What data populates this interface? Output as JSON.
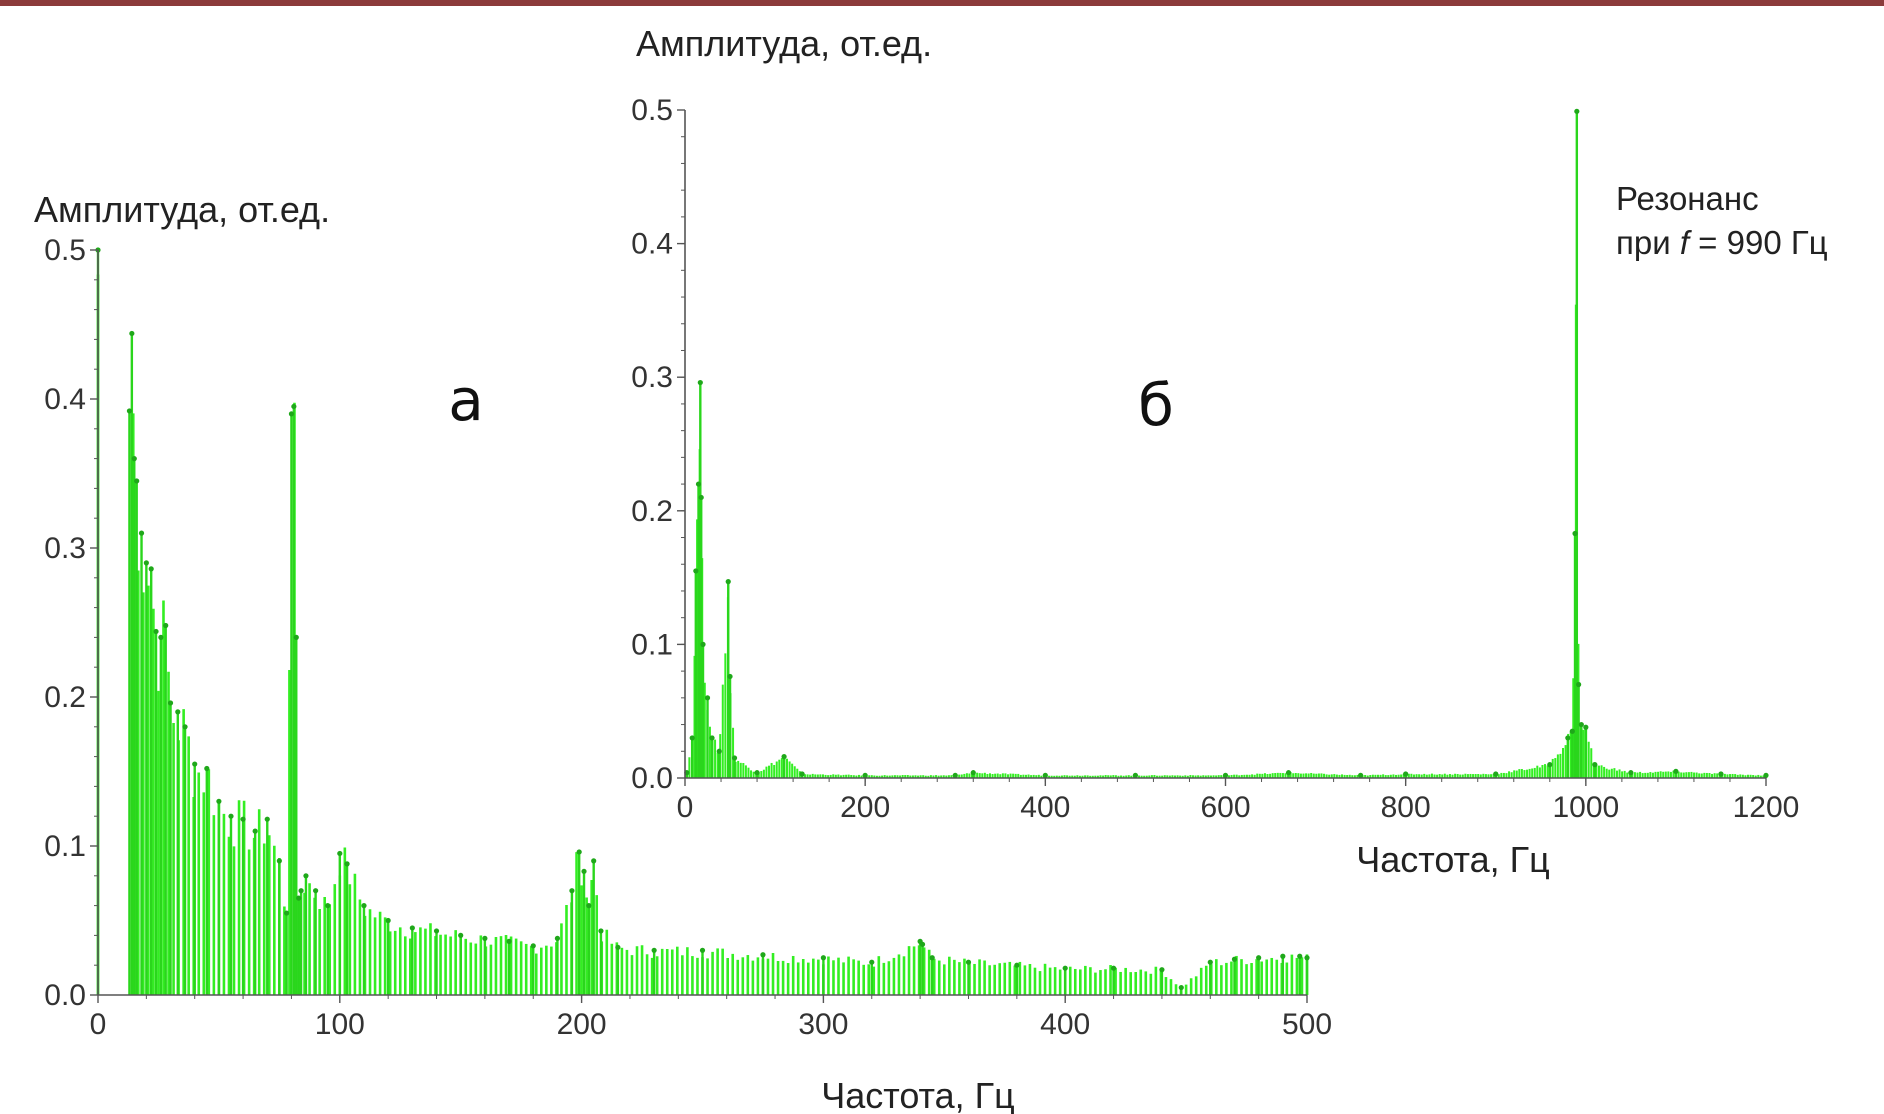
{
  "colors": {
    "bars": "#33ee22",
    "bar_stroke": "#2ad61c",
    "points": "#1fa81a",
    "axis": "#555555",
    "topbar": "#8c3b3b"
  },
  "chart_data": [
    {
      "type": "bar",
      "panel_label": "а",
      "ylabel": "Амплитуда, от.ед.",
      "xlabel": "Частота, Гц",
      "xlim": [
        0,
        500
      ],
      "ylim": [
        0,
        0.5
      ],
      "xticks": [
        "0",
        "100",
        "200",
        "300",
        "400",
        "500"
      ],
      "yticks": [
        "0.0",
        "0.1",
        "0.2",
        "0.3",
        "0.4",
        "0.5"
      ],
      "x": [
        0,
        13,
        14,
        15,
        16,
        18,
        20,
        22,
        24,
        26,
        28,
        30,
        33,
        36,
        40,
        45,
        50,
        55,
        60,
        65,
        70,
        75,
        78,
        80,
        81,
        82,
        83,
        84,
        86,
        90,
        95,
        100,
        103,
        110,
        120,
        130,
        140,
        150,
        160,
        170,
        180,
        190,
        196,
        199,
        201,
        203,
        205,
        208,
        215,
        230,
        250,
        275,
        300,
        320,
        340,
        341,
        345,
        360,
        380,
        400,
        420,
        440,
        448,
        460,
        470,
        480,
        490,
        497,
        500
      ],
      "values": [
        0.5,
        0.392,
        0.444,
        0.36,
        0.345,
        0.31,
        0.29,
        0.286,
        0.244,
        0.24,
        0.248,
        0.196,
        0.19,
        0.18,
        0.155,
        0.152,
        0.13,
        0.12,
        0.118,
        0.11,
        0.118,
        0.09,
        0.055,
        0.39,
        0.395,
        0.24,
        0.065,
        0.07,
        0.08,
        0.07,
        0.06,
        0.095,
        0.088,
        0.06,
        0.05,
        0.045,
        0.043,
        0.04,
        0.038,
        0.036,
        0.033,
        0.038,
        0.07,
        0.096,
        0.083,
        0.06,
        0.09,
        0.043,
        0.032,
        0.03,
        0.03,
        0.027,
        0.025,
        0.022,
        0.036,
        0.034,
        0.025,
        0.022,
        0.02,
        0.018,
        0.018,
        0.017,
        0.005,
        0.022,
        0.024,
        0.025,
        0.026,
        0.026,
        0.025
      ]
    },
    {
      "type": "bar",
      "panel_label": "б",
      "ylabel": "Амплитуда, от.ед.",
      "xlabel": "Частота, Гц",
      "xlim": [
        0,
        1200
      ],
      "ylim": [
        0,
        0.5
      ],
      "xticks": [
        "0",
        "200",
        "400",
        "600",
        "800",
        "1000",
        "1200"
      ],
      "yticks": [
        "0.0",
        "0.1",
        "0.2",
        "0.3",
        "0.4",
        "0.5"
      ],
      "annotation": [
        "Резонанс",
        "при",
        "f",
        "= 990  Гц"
      ],
      "x": [
        2,
        8,
        12,
        15,
        17,
        18,
        20,
        25,
        30,
        38,
        48,
        50,
        55,
        80,
        110,
        130,
        200,
        300,
        320,
        400,
        500,
        600,
        670,
        750,
        800,
        900,
        960,
        980,
        985,
        988,
        990,
        992,
        995,
        1000,
        1010,
        1050,
        1100,
        1150,
        1200
      ],
      "values": [
        0.004,
        0.03,
        0.155,
        0.22,
        0.296,
        0.21,
        0.1,
        0.06,
        0.03,
        0.02,
        0.147,
        0.076,
        0.015,
        0.004,
        0.016,
        0.003,
        0.002,
        0.002,
        0.004,
        0.002,
        0.002,
        0.002,
        0.004,
        0.002,
        0.003,
        0.003,
        0.01,
        0.03,
        0.035,
        0.183,
        0.499,
        0.07,
        0.04,
        0.038,
        0.01,
        0.004,
        0.005,
        0.003,
        0.002
      ]
    }
  ]
}
